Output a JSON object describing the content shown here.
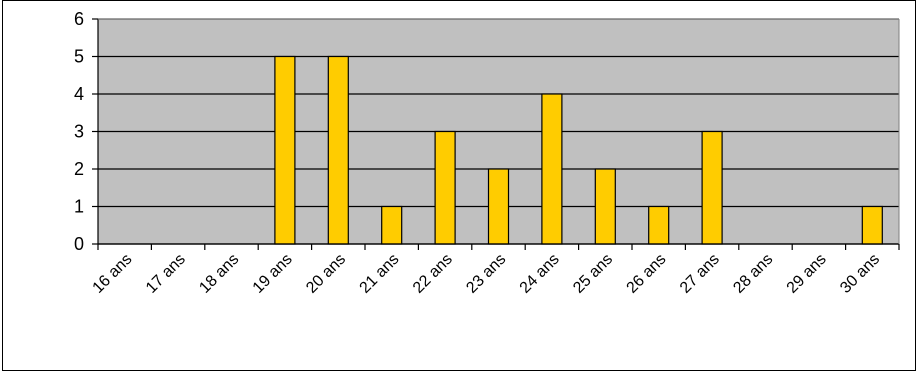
{
  "chart_data": {
    "type": "bar",
    "categories": [
      "16 ans",
      "17 ans",
      "18 ans",
      "19 ans",
      "20 ans",
      "21 ans",
      "22 ans",
      "23 ans",
      "24 ans",
      "25 ans",
      "26 ans",
      "27 ans",
      "28 ans",
      "29 ans",
      "30 ans"
    ],
    "values": [
      0,
      0,
      0,
      5,
      5,
      1,
      3,
      2,
      4,
      2,
      1,
      3,
      0,
      0,
      1
    ],
    "ylim": [
      0,
      6
    ],
    "yticks": [
      0,
      1,
      2,
      3,
      4,
      5,
      6
    ],
    "grid": true,
    "colors": {
      "plot_bg": "#c0c0c0",
      "bar_fill": "#ffcc00",
      "bar_stroke": "#000000",
      "grid": "#000000"
    }
  }
}
